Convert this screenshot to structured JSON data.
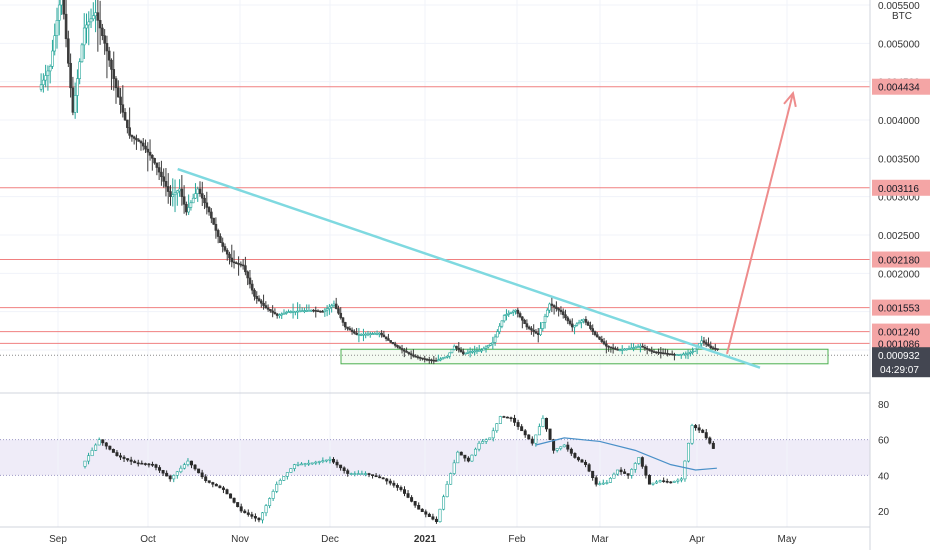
{
  "chart_data": {
    "type": "candlestick",
    "currency": "BTC",
    "x_ticks": [
      "Sep",
      "Oct",
      "Nov",
      "Dec",
      "2021",
      "Feb",
      "Mar",
      "Apr",
      "May"
    ],
    "y_ticks": [
      "0.005500",
      "0.005000",
      "0.004500",
      "0.004000",
      "0.003500",
      "0.003000",
      "0.002500",
      "0.002000",
      "0.001500",
      "0.001000"
    ],
    "y_range": [
      0.0007,
      0.0056
    ],
    "horizontal_levels": [
      {
        "label": "0.004434",
        "value": 0.004434
      },
      {
        "label": "0.003116",
        "value": 0.003116
      },
      {
        "label": "0.002180",
        "value": 0.00218
      },
      {
        "label": "0.001553",
        "value": 0.001553
      },
      {
        "label": "0.001240",
        "value": 0.00124
      },
      {
        "label": "0.001086",
        "value": 0.001086
      }
    ],
    "current_price": {
      "label": "0.000932",
      "value": 0.000932,
      "countdown": "04:29:07"
    },
    "support_zone": {
      "low": 0.00082,
      "high": 0.00101
    },
    "trendline": {
      "start": {
        "date": "2020-10-11",
        "price": 0.00336
      },
      "end": {
        "date": "2021-04-22",
        "price": 0.00077
      }
    },
    "projection_arrow": {
      "start": {
        "date": "2021-04-11",
        "price": 0.00095
      },
      "end": {
        "date": "2021-05-03",
        "price": 0.00435
      }
    },
    "price_path": [
      [
        0,
        0.0044
      ],
      [
        5,
        0.0047
      ],
      [
        10,
        0.0057
      ],
      [
        15,
        0.0041
      ],
      [
        20,
        0.0052
      ],
      [
        25,
        0.0054
      ],
      [
        30,
        0.0049
      ],
      [
        35,
        0.0043
      ],
      [
        40,
        0.0038
      ],
      [
        45,
        0.0037
      ],
      [
        50,
        0.0035
      ],
      [
        55,
        0.0032
      ],
      [
        58,
        0.003
      ],
      [
        62,
        0.0031
      ],
      [
        65,
        0.0028
      ],
      [
        70,
        0.0031
      ],
      [
        75,
        0.0028
      ],
      [
        80,
        0.0024
      ],
      [
        85,
        0.00215
      ],
      [
        90,
        0.0021
      ],
      [
        95,
        0.0017
      ],
      [
        100,
        0.00155
      ],
      [
        105,
        0.00145
      ],
      [
        110,
        0.0015
      ],
      [
        120,
        0.00152
      ],
      [
        125,
        0.0015
      ],
      [
        130,
        0.0016
      ],
      [
        135,
        0.0013
      ],
      [
        140,
        0.0012
      ],
      [
        150,
        0.00122
      ],
      [
        155,
        0.0011
      ],
      [
        160,
        0.001
      ],
      [
        165,
        0.00092
      ],
      [
        170,
        0.00088
      ],
      [
        175,
        0.00086
      ],
      [
        180,
        0.00092
      ],
      [
        183,
        0.00105
      ],
      [
        187,
        0.00095
      ],
      [
        190,
        0.00098
      ],
      [
        195,
        0.001
      ],
      [
        200,
        0.0011
      ],
      [
        205,
        0.00145
      ],
      [
        210,
        0.00152
      ],
      [
        215,
        0.0013
      ],
      [
        220,
        0.0012
      ],
      [
        225,
        0.0016
      ],
      [
        230,
        0.0015
      ],
      [
        235,
        0.0013
      ],
      [
        240,
        0.0014
      ],
      [
        245,
        0.0012
      ],
      [
        250,
        0.00105
      ],
      [
        255,
        0.001
      ],
      [
        260,
        0.00102
      ],
      [
        265,
        0.00105
      ],
      [
        270,
        0.00098
      ],
      [
        275,
        0.00096
      ],
      [
        280,
        0.00094
      ],
      [
        285,
        0.00095
      ],
      [
        288,
        0.00098
      ],
      [
        292,
        0.00112
      ],
      [
        296,
        0.00103
      ],
      [
        299,
        0.00101
      ]
    ],
    "rsi_ticks": [
      "80",
      "60",
      "40",
      "20"
    ],
    "rsi_band": [
      40,
      60
    ],
    "rsi_path": [
      [
        0,
        45
      ],
      [
        5,
        60
      ],
      [
        10,
        51
      ],
      [
        15,
        47
      ],
      [
        20,
        46
      ],
      [
        25,
        38
      ],
      [
        30,
        48
      ],
      [
        35,
        37
      ],
      [
        40,
        32
      ],
      [
        45,
        20
      ],
      [
        50,
        15
      ],
      [
        55,
        35
      ],
      [
        60,
        46
      ],
      [
        65,
        47
      ],
      [
        70,
        49
      ],
      [
        75,
        41
      ],
      [
        80,
        41
      ],
      [
        85,
        38
      ],
      [
        90,
        32
      ],
      [
        95,
        21
      ],
      [
        100,
        14
      ],
      [
        103,
        35
      ],
      [
        106,
        53
      ],
      [
        109,
        48
      ],
      [
        112,
        58
      ],
      [
        115,
        61
      ],
      [
        118,
        73
      ],
      [
        121,
        72
      ],
      [
        124,
        65
      ],
      [
        127,
        58
      ],
      [
        130,
        72
      ],
      [
        133,
        54
      ],
      [
        136,
        57
      ],
      [
        139,
        50
      ],
      [
        142,
        46
      ],
      [
        145,
        35
      ],
      [
        148,
        36
      ],
      [
        151,
        43
      ],
      [
        154,
        40
      ],
      [
        157,
        50
      ],
      [
        160,
        35
      ],
      [
        163,
        37
      ],
      [
        166,
        36
      ],
      [
        169,
        38
      ],
      [
        172,
        68
      ],
      [
        175,
        64
      ],
      [
        178,
        55
      ]
    ],
    "rsi_ma": [
      [
        127,
        57
      ],
      [
        135,
        61
      ],
      [
        145,
        59
      ],
      [
        155,
        54
      ],
      [
        165,
        46
      ],
      [
        172,
        43
      ],
      [
        178,
        44
      ]
    ]
  }
}
